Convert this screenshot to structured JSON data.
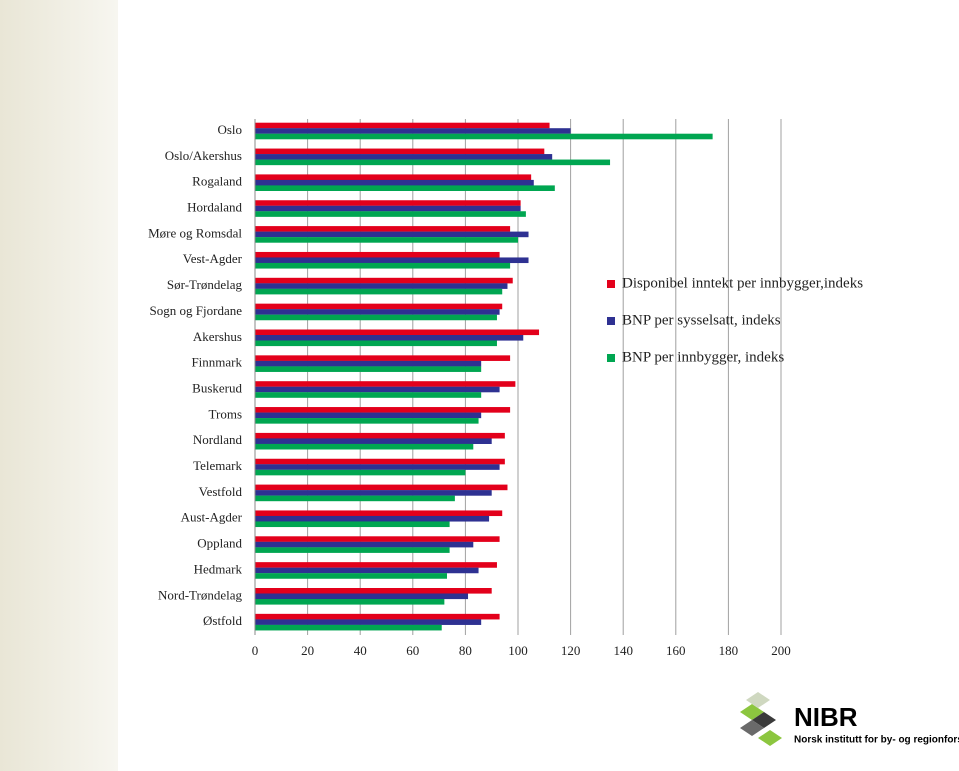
{
  "chart_data": {
    "type": "bar",
    "orientation": "horizontal",
    "categories": [
      "Oslo",
      "Oslo/Akershus",
      "Rogaland",
      "Hordaland",
      "Møre og Romsdal",
      "Vest-Agder",
      "Sør-Trøndelag",
      "Sogn og Fjordane",
      "Akershus",
      "Finnmark",
      "Buskerud",
      "Troms",
      "Nordland",
      "Telemark",
      "Vestfold",
      "Aust-Agder",
      "Oppland",
      "Hedmark",
      "Nord-Trøndelag",
      "Østfold"
    ],
    "series": [
      {
        "name": "Disponibel inntekt per innbygger,indeks",
        "color": "#e3001b",
        "values": [
          112,
          110,
          105,
          101,
          97,
          93,
          98,
          94,
          108,
          97,
          99,
          97,
          95,
          95,
          96,
          94,
          93,
          92,
          90,
          93
        ]
      },
      {
        "name": "BNP per sysselsatt, indeks",
        "color": "#2e3192",
        "values": [
          120,
          113,
          106,
          101,
          104,
          104,
          96,
          93,
          102,
          86,
          93,
          86,
          90,
          93,
          90,
          89,
          83,
          85,
          81,
          86
        ]
      },
      {
        "name": "BNP per innbygger, indeks",
        "color": "#00a651",
        "values": [
          174,
          135,
          114,
          103,
          100,
          97,
          94,
          92,
          92,
          86,
          86,
          85,
          83,
          80,
          76,
          74,
          74,
          73,
          72,
          71
        ]
      }
    ],
    "xlim": [
      0,
      200
    ],
    "xticks": [
      0,
      20,
      40,
      60,
      80,
      100,
      120,
      140,
      160,
      180,
      200
    ],
    "grid": true,
    "legend": "right"
  },
  "logo": {
    "name": "NIBR",
    "tagline": "Norsk institutt for by- og regionforskning"
  }
}
